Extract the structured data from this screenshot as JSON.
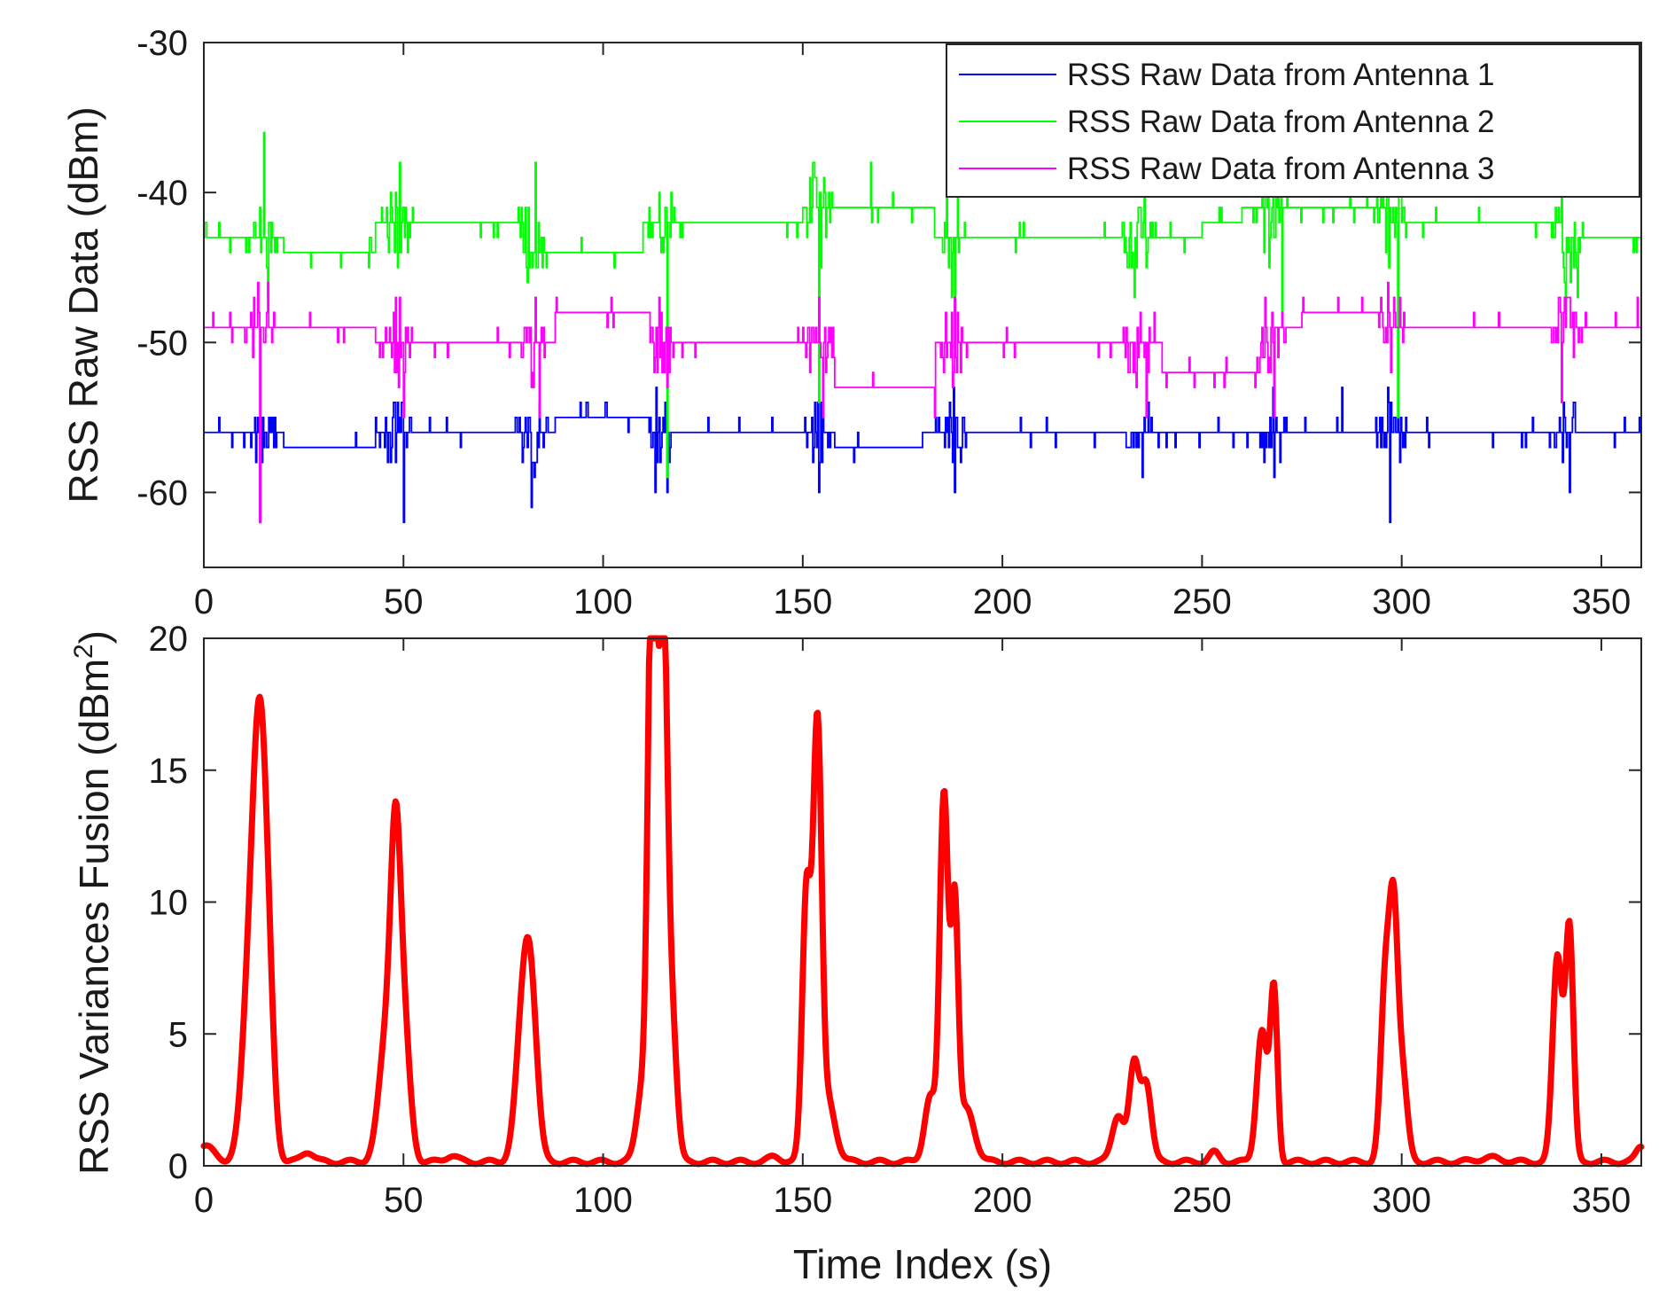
{
  "chart_data": [
    {
      "type": "line",
      "id": "top",
      "ylabel": "RSS Raw Data (dBm)",
      "xlabel": "",
      "xlim": [
        0,
        360
      ],
      "ylim": [
        -65,
        -30
      ],
      "xticks": [
        0,
        50,
        100,
        150,
        200,
        250,
        300,
        350
      ],
      "yticks": [
        -30,
        -40,
        -50,
        -60
      ],
      "legend_position": "top-right",
      "legend": [
        "RSS Raw Data from Antenna 1",
        "RSS Raw Data from Antenna 2",
        "RSS Raw Data from Antenna 3"
      ],
      "activity_peaks": [
        14,
        48,
        82,
        114,
        154,
        187,
        234,
        267,
        297,
        341
      ],
      "series": [
        {
          "name": "RSS Raw Data from Antenna 1",
          "color": "#0000ff",
          "segments": [
            {
              "from": 0,
              "to": 20,
              "value": -56
            },
            {
              "from": 20,
              "to": 43,
              "value": -57
            },
            {
              "from": 43,
              "to": 80,
              "value": -56
            },
            {
              "from": 80,
              "to": 88,
              "value": -56
            },
            {
              "from": 88,
              "to": 112,
              "value": -55
            },
            {
              "from": 112,
              "to": 158,
              "value": -56
            },
            {
              "from": 158,
              "to": 180,
              "value": -57
            },
            {
              "from": 180,
              "to": 360,
              "value": -56
            }
          ],
          "spikes": [
            {
              "x": 14,
              "value": -62
            },
            {
              "x": 50,
              "value": -62
            },
            {
              "x": 82,
              "value": -61
            },
            {
              "x": 113,
              "value": -60
            },
            {
              "x": 116,
              "value": -60
            },
            {
              "x": 154,
              "value": -60
            },
            {
              "x": 188,
              "value": -60
            },
            {
              "x": 235,
              "value": -59
            },
            {
              "x": 268,
              "value": -59
            },
            {
              "x": 285,
              "value": -53
            },
            {
              "x": 297,
              "value": -62
            },
            {
              "x": 342,
              "value": -60
            }
          ]
        },
        {
          "name": "RSS Raw Data from Antenna 2",
          "color": "#00ff00",
          "segments": [
            {
              "from": 0,
              "to": 20,
              "value": -43
            },
            {
              "from": 20,
              "to": 43,
              "value": -44
            },
            {
              "from": 43,
              "to": 80,
              "value": -42
            },
            {
              "from": 80,
              "to": 88,
              "value": -44
            },
            {
              "from": 88,
              "to": 110,
              "value": -44
            },
            {
              "from": 110,
              "to": 150,
              "value": -42
            },
            {
              "from": 150,
              "to": 183,
              "value": -41
            },
            {
              "from": 183,
              "to": 250,
              "value": -43
            },
            {
              "from": 250,
              "to": 260,
              "value": -42
            },
            {
              "from": 260,
              "to": 300,
              "value": -41
            },
            {
              "from": 300,
              "to": 340,
              "value": -42
            },
            {
              "from": 340,
              "to": 360,
              "value": -43
            }
          ],
          "spikes": [
            {
              "x": 15,
              "value": -36
            },
            {
              "x": 16,
              "value": -47
            },
            {
              "x": 49,
              "value": -38
            },
            {
              "x": 83,
              "value": -38
            },
            {
              "x": 114,
              "value": -40
            },
            {
              "x": 116,
              "value": -59
            },
            {
              "x": 154,
              "value": -54
            },
            {
              "x": 167,
              "value": -38
            },
            {
              "x": 186,
              "value": -39
            },
            {
              "x": 188,
              "value": -48
            },
            {
              "x": 233,
              "value": -47
            },
            {
              "x": 266,
              "value": -40
            },
            {
              "x": 270,
              "value": -48
            },
            {
              "x": 297,
              "value": -41
            },
            {
              "x": 299,
              "value": -55
            },
            {
              "x": 340,
              "value": -39
            },
            {
              "x": 344,
              "value": -47
            }
          ]
        },
        {
          "name": "RSS Raw Data from Antenna 3",
          "color": "#ff00ff",
          "segments": [
            {
              "from": 0,
              "to": 43,
              "value": -49
            },
            {
              "from": 43,
              "to": 88,
              "value": -50
            },
            {
              "from": 88,
              "to": 112,
              "value": -48
            },
            {
              "from": 112,
              "to": 158,
              "value": -50
            },
            {
              "from": 158,
              "to": 183,
              "value": -53
            },
            {
              "from": 183,
              "to": 240,
              "value": -50
            },
            {
              "from": 240,
              "to": 265,
              "value": -52
            },
            {
              "from": 265,
              "to": 275,
              "value": -49
            },
            {
              "from": 275,
              "to": 295,
              "value": -48
            },
            {
              "from": 295,
              "to": 360,
              "value": -49
            }
          ],
          "spikes": [
            {
              "x": 14,
              "value": -62
            },
            {
              "x": 16,
              "value": -46
            },
            {
              "x": 49,
              "value": -47
            },
            {
              "x": 50,
              "value": -55
            },
            {
              "x": 83,
              "value": -47
            },
            {
              "x": 84,
              "value": -55
            },
            {
              "x": 114,
              "value": -47
            },
            {
              "x": 116,
              "value": -53
            },
            {
              "x": 154,
              "value": -47
            },
            {
              "x": 155,
              "value": -55
            },
            {
              "x": 183,
              "value": -55
            },
            {
              "x": 188,
              "value": -47
            },
            {
              "x": 236,
              "value": -55
            },
            {
              "x": 238,
              "value": -48
            },
            {
              "x": 268,
              "value": -55
            },
            {
              "x": 270,
              "value": -48
            },
            {
              "x": 284,
              "value": -47
            },
            {
              "x": 290,
              "value": -47
            },
            {
              "x": 340,
              "value": -54
            },
            {
              "x": 342,
              "value": -47
            },
            {
              "x": 359,
              "value": -47
            }
          ]
        }
      ]
    },
    {
      "type": "line",
      "id": "bottom",
      "ylabel": "RSS Variances Fusion (dBm",
      "ylabel_superscript": "2",
      "ylabel_suffix": ")",
      "xlabel": "Time Index (s)",
      "xlim": [
        0,
        360
      ],
      "ylim": [
        0,
        20
      ],
      "xticks": [
        0,
        50,
        100,
        150,
        200,
        250,
        300,
        350
      ],
      "yticks": [
        0,
        5,
        10,
        15,
        20
      ],
      "series": [
        {
          "name": "RSS Variances Fusion",
          "color": "#ff0000",
          "baseline": 0.15,
          "peaks": [
            {
              "x": 0,
              "height": 0.6,
              "width": 2.5
            },
            {
              "x": 12,
              "height": 8.5,
              "width": 2.0
            },
            {
              "x": 14,
              "height": 9.8,
              "width": 1.5
            },
            {
              "x": 16,
              "height": 6.5,
              "width": 1.5
            },
            {
              "x": 26,
              "height": 0.4,
              "width": 1.5
            },
            {
              "x": 46,
              "height": 5.0,
              "width": 2.0
            },
            {
              "x": 48,
              "height": 8.4,
              "width": 1.2
            },
            {
              "x": 50,
              "height": 5.0,
              "width": 1.6
            },
            {
              "x": 62,
              "height": 0.25,
              "width": 1.5
            },
            {
              "x": 80,
              "height": 5.2,
              "width": 1.8
            },
            {
              "x": 82,
              "height": 5.0,
              "width": 1.6
            },
            {
              "x": 110,
              "height": 3.0,
              "width": 1.5
            },
            {
              "x": 112,
              "height": 17.5,
              "width": 0.9
            },
            {
              "x": 113,
              "height": 12.0,
              "width": 0.8
            },
            {
              "x": 115,
              "height": 19.8,
              "width": 1.0
            },
            {
              "x": 117,
              "height": 6.0,
              "width": 1.3
            },
            {
              "x": 143,
              "height": 0.2,
              "width": 1.5
            },
            {
              "x": 151,
              "height": 10.6,
              "width": 1.1
            },
            {
              "x": 153,
              "height": 6.0,
              "width": 0.8
            },
            {
              "x": 154,
              "height": 11.8,
              "width": 0.9
            },
            {
              "x": 156,
              "height": 2.5,
              "width": 2.0
            },
            {
              "x": 182,
              "height": 2.5,
              "width": 1.5
            },
            {
              "x": 185,
              "height": 10.2,
              "width": 0.9
            },
            {
              "x": 186,
              "height": 6.0,
              "width": 0.8
            },
            {
              "x": 188,
              "height": 9.6,
              "width": 0.9
            },
            {
              "x": 191,
              "height": 2.0,
              "width": 2.0
            },
            {
              "x": 229,
              "height": 1.8,
              "width": 1.5
            },
            {
              "x": 233,
              "height": 3.6,
              "width": 1.2
            },
            {
              "x": 236,
              "height": 3.0,
              "width": 1.3
            },
            {
              "x": 253,
              "height": 0.35,
              "width": 1.2
            },
            {
              "x": 265,
              "height": 5.0,
              "width": 1.3
            },
            {
              "x": 268,
              "height": 6.4,
              "width": 0.9
            },
            {
              "x": 296,
              "height": 7.0,
              "width": 1.2
            },
            {
              "x": 298,
              "height": 7.8,
              "width": 1.0
            },
            {
              "x": 300,
              "height": 3.5,
              "width": 1.3
            },
            {
              "x": 322,
              "height": 0.15,
              "width": 3.0
            },
            {
              "x": 339,
              "height": 7.8,
              "width": 1.2
            },
            {
              "x": 342,
              "height": 8.8,
              "width": 1.0
            },
            {
              "x": 360,
              "height": 0.6,
              "width": 1.2
            }
          ]
        }
      ]
    }
  ]
}
